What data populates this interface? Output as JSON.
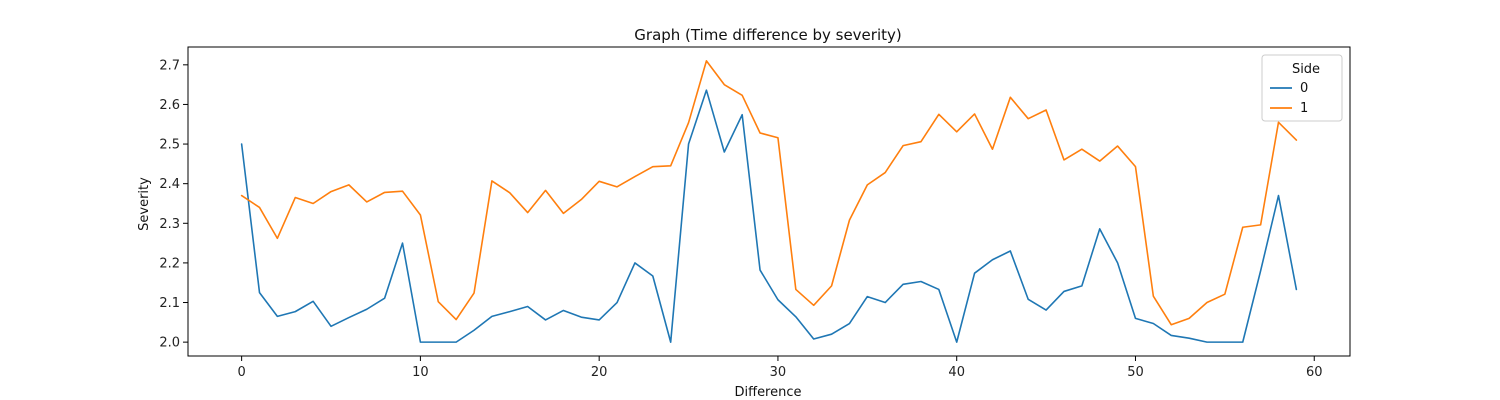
{
  "chart_data": {
    "type": "line",
    "title": "Graph (Time difference by severity)",
    "xlabel": "Difference",
    "ylabel": "Severity",
    "xlim": [
      -3,
      62
    ],
    "ylim": [
      1.965,
      2.745
    ],
    "xticks": [
      0,
      10,
      20,
      30,
      40,
      50,
      60
    ],
    "yticks": [
      2.0,
      2.1,
      2.2,
      2.3,
      2.4,
      2.5,
      2.6,
      2.7
    ],
    "grid": false,
    "legend": {
      "title": "Side",
      "placement": "top-right"
    },
    "x": [
      0,
      1,
      2,
      3,
      4,
      5,
      6,
      7,
      8,
      9,
      10,
      11,
      12,
      13,
      14,
      15,
      16,
      17,
      18,
      19,
      20,
      21,
      22,
      23,
      24,
      25,
      26,
      27,
      28,
      29,
      30,
      31,
      32,
      33,
      34,
      35,
      36,
      37,
      38,
      39,
      40,
      41,
      42,
      43,
      44,
      45,
      46,
      47,
      48,
      49,
      50,
      51,
      52,
      53,
      54,
      55,
      56,
      57,
      58,
      59
    ],
    "series": [
      {
        "name": "0",
        "color": "#1f77b4",
        "values": [
          2.5,
          2.125,
          2.065,
          2.077,
          2.103,
          2.04,
          2.062,
          2.083,
          2.111,
          2.25,
          2.0,
          2.0,
          2.0,
          2.03,
          2.065,
          2.077,
          2.09,
          2.056,
          2.08,
          2.063,
          2.056,
          2.1,
          2.2,
          2.167,
          2.0,
          2.5,
          2.636,
          2.48,
          2.574,
          2.182,
          2.107,
          2.064,
          2.008,
          2.02,
          2.047,
          2.115,
          2.1,
          2.146,
          2.153,
          2.133,
          2.0,
          2.174,
          2.208,
          2.23,
          2.108,
          2.081,
          2.128,
          2.142,
          2.286,
          2.2,
          2.06,
          2.047,
          2.017,
          2.01,
          2.0,
          2.0,
          2.0,
          2.18,
          2.37,
          2.133
        ]
      },
      {
        "name": "1",
        "color": "#ff7f0e",
        "values": [
          2.37,
          2.34,
          2.262,
          2.365,
          2.35,
          2.38,
          2.397,
          2.354,
          2.378,
          2.381,
          2.321,
          2.102,
          2.057,
          2.124,
          2.407,
          2.377,
          2.327,
          2.383,
          2.325,
          2.36,
          2.406,
          2.392,
          2.418,
          2.443,
          2.445,
          2.554,
          2.71,
          2.65,
          2.623,
          2.528,
          2.516,
          2.133,
          2.093,
          2.142,
          2.308,
          2.397,
          2.428,
          2.496,
          2.506,
          2.575,
          2.531,
          2.576,
          2.487,
          2.618,
          2.564,
          2.586,
          2.46,
          2.487,
          2.457,
          2.495,
          2.443,
          2.116,
          2.044,
          2.06,
          2.1,
          2.121,
          2.29,
          2.296,
          2.555,
          2.51
        ]
      }
    ]
  }
}
